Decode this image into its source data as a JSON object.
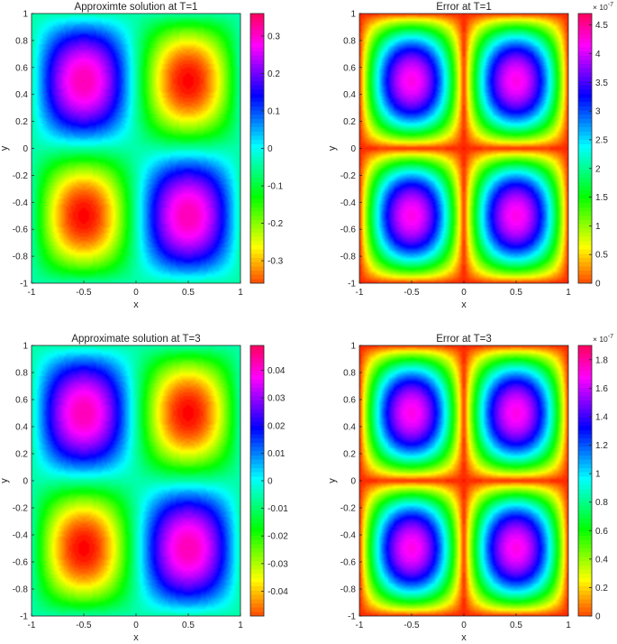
{
  "chart_data": [
    {
      "type": "heatmap",
      "title": "Approximte solution at T=1",
      "xlabel": "x",
      "ylabel": "y",
      "xlim": [
        -1,
        1
      ],
      "ylim": [
        -1,
        1
      ],
      "xticks": [
        "-1",
        "-0.5",
        "0",
        "0.5",
        "1"
      ],
      "yticks": [
        "-1",
        "-0.8",
        "-0.6",
        "-0.4",
        "-0.2",
        "0",
        "0.2",
        "0.4",
        "0.6",
        "0.8",
        "1"
      ],
      "field": "amp * sin(pi*x) * sin(pi*y) (negated): peaks +0.36 at (-0.5,0.5),(0.5,-0.5); troughs -0.36 at (0.5,0.5),(-0.5,-0.5)",
      "amplitude": 0.36,
      "clim": [
        -0.36,
        0.36
      ],
      "colormap": "hsv",
      "colorbar_ticks": [
        "-0.3",
        "-0.2",
        "-0.1",
        "0",
        "0.1",
        "0.2",
        "0.3"
      ],
      "colorbar_exponent": ""
    },
    {
      "type": "heatmap",
      "title": "Error at T=1",
      "xlabel": "x",
      "ylabel": "y",
      "xlim": [
        -1,
        1
      ],
      "ylim": [
        -1,
        1
      ],
      "xticks": [
        "-1",
        "-0.5",
        "0",
        "0.5",
        "1"
      ],
      "yticks": [
        "-1",
        "-0.8",
        "-0.6",
        "-0.4",
        "-0.2",
        "0",
        "0.2",
        "0.4",
        "0.6",
        "0.8",
        "1"
      ],
      "field": "absolute error, maxima near (±0.5, ±0.5), zero along borders and center cross",
      "amplitude": 4.7e-07,
      "clim": [
        0,
        4.7e-07
      ],
      "colormap": "hsv",
      "colorbar_ticks": [
        "0",
        "0.5",
        "1",
        "1.5",
        "2",
        "2.5",
        "3",
        "3.5",
        "4",
        "4.5"
      ],
      "colorbar_exponent": "× 10",
      "colorbar_exponent_power": "-7"
    },
    {
      "type": "heatmap",
      "title": "Approximate solution  at T=3",
      "xlabel": "x",
      "ylabel": "y",
      "xlim": [
        -1,
        1
      ],
      "ylim": [
        -1,
        1
      ],
      "xticks": [
        "-1",
        "-0.5",
        "0",
        "0.5",
        "1"
      ],
      "yticks": [
        "-1",
        "-0.8",
        "-0.6",
        "-0.4",
        "-0.2",
        "0",
        "0.2",
        "0.4",
        "0.6",
        "0.8",
        "1"
      ],
      "field": "amp * sin(pi*x) * sin(pi*y) (negated): peaks +0.049 at (-0.5,0.5),(0.5,-0.5); troughs -0.049 at (0.5,0.5),(-0.5,-0.5)",
      "amplitude": 0.049,
      "clim": [
        -0.049,
        0.049
      ],
      "colormap": "hsv",
      "colorbar_ticks": [
        "-0.04",
        "-0.03",
        "-0.02",
        "-0.01",
        "0",
        "0.01",
        "0.02",
        "0.03",
        "0.04"
      ],
      "colorbar_exponent": ""
    },
    {
      "type": "heatmap",
      "title": "Error at T=3",
      "xlabel": "x",
      "ylabel": "y",
      "xlim": [
        -1,
        1
      ],
      "ylim": [
        -1,
        1
      ],
      "xticks": [
        "-1",
        "-0.5",
        "0",
        "0.5",
        "1"
      ],
      "yticks": [
        "-1",
        "-0.8",
        "-0.6",
        "-0.4",
        "-0.2",
        "0",
        "0.2",
        "0.4",
        "0.6",
        "0.8",
        "1"
      ],
      "field": "absolute error, maxima near (±0.5, ±0.5), zero along borders and center cross",
      "amplitude": 1.9e-07,
      "clim": [
        0,
        1.9e-07
      ],
      "colormap": "hsv",
      "colorbar_ticks": [
        "0",
        "0.2",
        "0.4",
        "0.6",
        "0.8",
        "1",
        "1.2",
        "1.4",
        "1.6",
        "1.8"
      ],
      "colorbar_exponent": "× 10",
      "colorbar_exponent_power": "-7"
    }
  ]
}
